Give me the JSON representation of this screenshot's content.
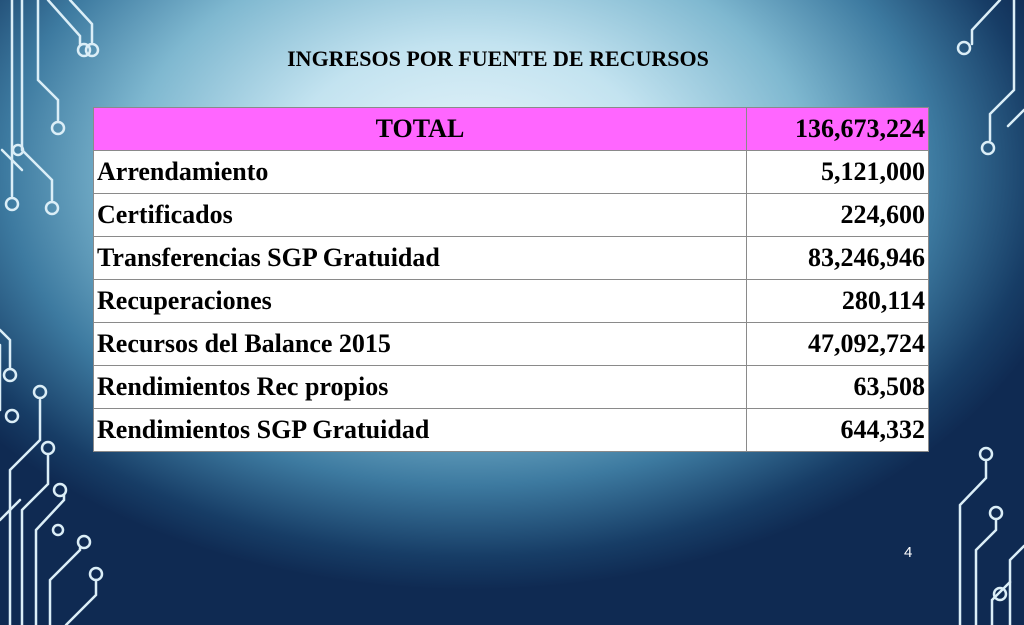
{
  "slide": {
    "title": "INGRESOS POR FUENTE DE RECURSOS",
    "page_number": "4"
  },
  "table": {
    "total": {
      "label": "TOTAL",
      "value": "136,673,224"
    },
    "rows": [
      {
        "label": "Arrendamiento",
        "value": "5,121,000"
      },
      {
        "label": "Certificados",
        "value": "224,600"
      },
      {
        "label": "Transferencias SGP Gratuidad",
        "value": "83,246,946"
      },
      {
        "label": "Recuperaciones",
        "value": "280,114"
      },
      {
        "label": "Recursos del Balance 2015",
        "value": "47,092,724"
      },
      {
        "label": "Rendimientos Rec propios",
        "value": "63,508"
      },
      {
        "label": "Rendimientos  SGP Gratuidad",
        "value": "644,332"
      }
    ]
  },
  "colors": {
    "total_row_background": "#ff66ff",
    "table_background": "#ffffff",
    "circuit_lines": "#dbeef7"
  }
}
